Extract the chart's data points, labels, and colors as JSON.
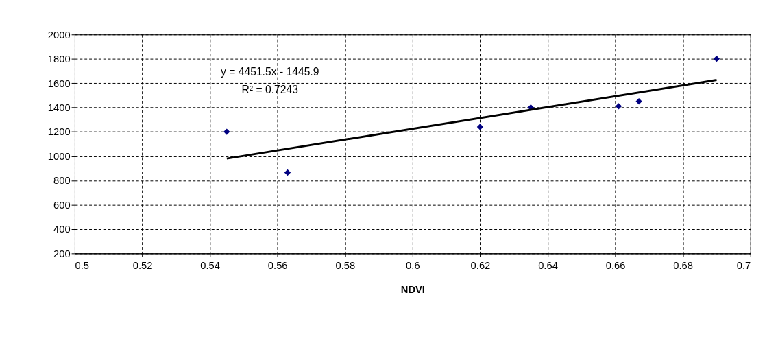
{
  "chart_data": {
    "type": "scatter",
    "xlabel": "NDVI",
    "xlim": [
      0.5,
      0.7
    ],
    "xticks": [
      0.5,
      0.52,
      0.54,
      0.56,
      0.58,
      0.6,
      0.62,
      0.64,
      0.66,
      0.68,
      0.7
    ],
    "ylim": [
      200,
      2000
    ],
    "yticks": [
      200,
      400,
      600,
      800,
      1000,
      1200,
      1400,
      1600,
      1800,
      2000
    ],
    "grid": true,
    "series": [
      {
        "type": "scatter",
        "marker": "diamond",
        "color": "#000080",
        "x": [
          0.545,
          0.563,
          0.62,
          0.635,
          0.661,
          0.667,
          0.69
        ],
        "values": [
          1200,
          865,
          1240,
          1400,
          1410,
          1450,
          1800
        ]
      },
      {
        "type": "line",
        "color": "#000000",
        "x": [
          0.545,
          0.69
        ],
        "values": [
          980,
          1626
        ],
        "line_style": "solid"
      }
    ],
    "annotations": [
      "y = 4451.5x - 1445.9",
      "R² = 0.7243"
    ]
  }
}
